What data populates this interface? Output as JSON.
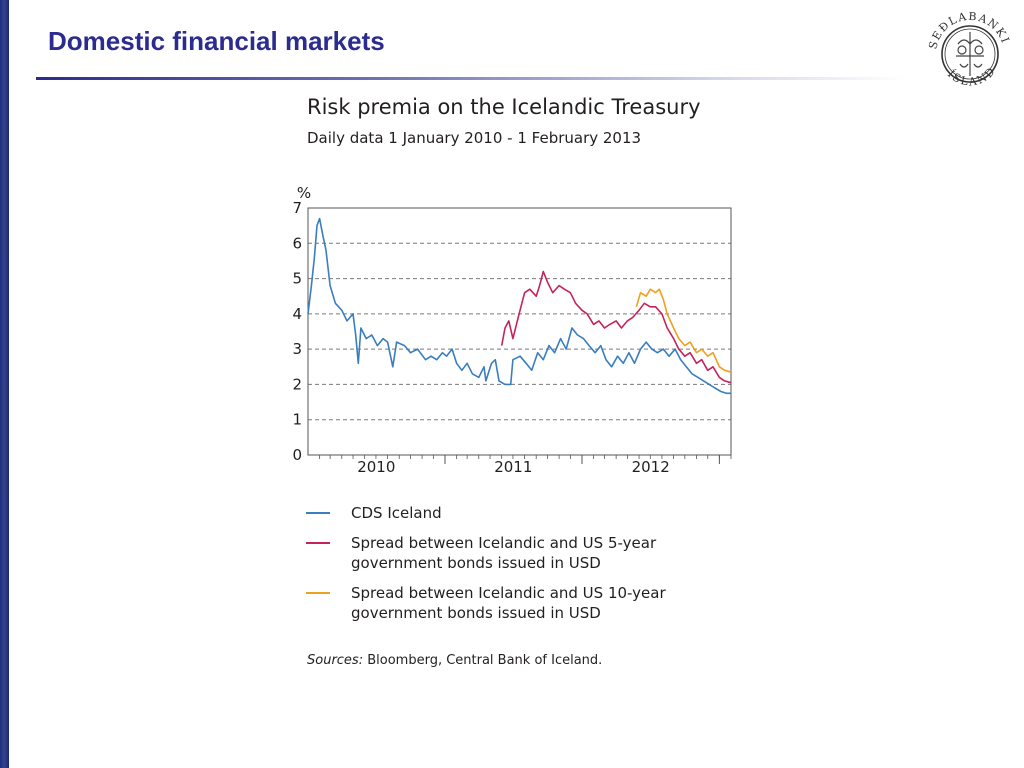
{
  "slide": {
    "title": "Domestic financial markets"
  },
  "logo": {
    "text_top": "SEÐLABANKI",
    "text_bottom": "ÍSLANDS",
    "icon": "central-bank-seal"
  },
  "colors": {
    "title": "#2b2b90",
    "cds": "#3a7ebf",
    "spread5": "#c4245c",
    "spread10": "#f0a020",
    "grid": "#7a7a7a"
  },
  "chart_data": {
    "type": "line",
    "title": "Risk premia on the Icelandic Treasury",
    "subtitle": "Daily data 1 January 2010 - 1 February 2013",
    "ylabel": "%",
    "ylim": [
      0,
      7
    ],
    "yticks": [
      "0",
      "1",
      "2",
      "3",
      "4",
      "5",
      "6",
      "7"
    ],
    "xlim": [
      "2010-01-01",
      "2013-02-01"
    ],
    "xtick_labels": [
      "2010",
      "2011",
      "2012"
    ],
    "grid": "horizontal dashed",
    "legend_position": "bottom",
    "series": [
      {
        "name": "CDS Iceland",
        "color": "#3a7ebf",
        "points": [
          [
            "2010-01-01",
            4.0
          ],
          [
            "2010-01-10",
            4.8
          ],
          [
            "2010-01-18",
            5.6
          ],
          [
            "2010-01-25",
            6.5
          ],
          [
            "2010-02-01",
            6.7
          ],
          [
            "2010-02-10",
            6.2
          ],
          [
            "2010-02-18",
            5.8
          ],
          [
            "2010-03-01",
            4.8
          ],
          [
            "2010-03-15",
            4.3
          ],
          [
            "2010-04-01",
            4.1
          ],
          [
            "2010-04-15",
            3.8
          ],
          [
            "2010-05-01",
            4.0
          ],
          [
            "2010-05-08",
            3.4
          ],
          [
            "2010-05-15",
            2.6
          ],
          [
            "2010-05-22",
            3.6
          ],
          [
            "2010-06-05",
            3.3
          ],
          [
            "2010-06-20",
            3.4
          ],
          [
            "2010-07-05",
            3.1
          ],
          [
            "2010-07-20",
            3.3
          ],
          [
            "2010-08-01",
            3.2
          ],
          [
            "2010-08-15",
            2.5
          ],
          [
            "2010-08-25",
            3.2
          ],
          [
            "2010-09-15",
            3.1
          ],
          [
            "2010-10-01",
            2.9
          ],
          [
            "2010-10-20",
            3.0
          ],
          [
            "2010-11-10",
            2.7
          ],
          [
            "2010-11-25",
            2.8
          ],
          [
            "2010-12-10",
            2.7
          ],
          [
            "2010-12-25",
            2.9
          ],
          [
            "2011-01-05",
            2.8
          ],
          [
            "2011-01-20",
            3.0
          ],
          [
            "2011-02-01",
            2.6
          ],
          [
            "2011-02-15",
            2.4
          ],
          [
            "2011-03-01",
            2.6
          ],
          [
            "2011-03-15",
            2.3
          ],
          [
            "2011-04-01",
            2.2
          ],
          [
            "2011-04-15",
            2.5
          ],
          [
            "2011-04-20",
            2.1
          ],
          [
            "2011-05-05",
            2.6
          ],
          [
            "2011-05-15",
            2.7
          ],
          [
            "2011-05-25",
            2.1
          ],
          [
            "2011-06-10",
            2.0
          ],
          [
            "2011-06-25",
            2.0
          ],
          [
            "2011-07-01",
            2.7
          ],
          [
            "2011-07-20",
            2.8
          ],
          [
            "2011-08-05",
            2.6
          ],
          [
            "2011-08-20",
            2.4
          ],
          [
            "2011-09-05",
            2.9
          ],
          [
            "2011-09-20",
            2.7
          ],
          [
            "2011-10-05",
            3.1
          ],
          [
            "2011-10-20",
            2.9
          ],
          [
            "2011-11-05",
            3.3
          ],
          [
            "2011-11-20",
            3.0
          ],
          [
            "2011-12-05",
            3.6
          ],
          [
            "2011-12-20",
            3.4
          ],
          [
            "2012-01-05",
            3.3
          ],
          [
            "2012-01-20",
            3.1
          ],
          [
            "2012-02-05",
            2.9
          ],
          [
            "2012-02-20",
            3.1
          ],
          [
            "2012-03-05",
            2.7
          ],
          [
            "2012-03-20",
            2.5
          ],
          [
            "2012-04-05",
            2.8
          ],
          [
            "2012-04-20",
            2.6
          ],
          [
            "2012-05-05",
            2.9
          ],
          [
            "2012-05-20",
            2.6
          ],
          [
            "2012-06-05",
            3.0
          ],
          [
            "2012-06-20",
            3.2
          ],
          [
            "2012-07-05",
            3.0
          ],
          [
            "2012-07-20",
            2.9
          ],
          [
            "2012-08-05",
            3.0
          ],
          [
            "2012-08-20",
            2.8
          ],
          [
            "2012-09-05",
            3.0
          ],
          [
            "2012-09-20",
            2.7
          ],
          [
            "2012-10-05",
            2.5
          ],
          [
            "2012-10-20",
            2.3
          ],
          [
            "2012-11-05",
            2.2
          ],
          [
            "2012-11-20",
            2.1
          ],
          [
            "2012-12-05",
            2.0
          ],
          [
            "2012-12-20",
            1.9
          ],
          [
            "2013-01-05",
            1.8
          ],
          [
            "2013-01-20",
            1.75
          ],
          [
            "2013-02-01",
            1.75
          ]
        ]
      },
      {
        "name": "Spread between Icelandic and US 5-year government bonds issued in USD",
        "color": "#c4245c",
        "points": [
          [
            "2011-06-01",
            3.1
          ],
          [
            "2011-06-10",
            3.6
          ],
          [
            "2011-06-20",
            3.8
          ],
          [
            "2011-07-01",
            3.3
          ],
          [
            "2011-07-15",
            3.9
          ],
          [
            "2011-08-01",
            4.6
          ],
          [
            "2011-08-15",
            4.7
          ],
          [
            "2011-09-01",
            4.5
          ],
          [
            "2011-09-10",
            4.8
          ],
          [
            "2011-09-20",
            5.2
          ],
          [
            "2011-10-01",
            4.9
          ],
          [
            "2011-10-15",
            4.6
          ],
          [
            "2011-11-01",
            4.8
          ],
          [
            "2011-11-15",
            4.7
          ],
          [
            "2011-12-01",
            4.6
          ],
          [
            "2011-12-15",
            4.3
          ],
          [
            "2012-01-01",
            4.1
          ],
          [
            "2012-01-15",
            4.0
          ],
          [
            "2012-02-01",
            3.7
          ],
          [
            "2012-02-15",
            3.8
          ],
          [
            "2012-03-01",
            3.6
          ],
          [
            "2012-03-15",
            3.7
          ],
          [
            "2012-04-01",
            3.8
          ],
          [
            "2012-04-15",
            3.6
          ],
          [
            "2012-05-01",
            3.8
          ],
          [
            "2012-05-15",
            3.9
          ],
          [
            "2012-06-01",
            4.1
          ],
          [
            "2012-06-15",
            4.3
          ],
          [
            "2012-07-01",
            4.2
          ],
          [
            "2012-07-15",
            4.2
          ],
          [
            "2012-08-01",
            4.0
          ],
          [
            "2012-08-15",
            3.6
          ],
          [
            "2012-09-01",
            3.3
          ],
          [
            "2012-09-15",
            3.0
          ],
          [
            "2012-10-01",
            2.8
          ],
          [
            "2012-10-15",
            2.9
          ],
          [
            "2012-11-01",
            2.6
          ],
          [
            "2012-11-15",
            2.7
          ],
          [
            "2012-12-01",
            2.4
          ],
          [
            "2012-12-15",
            2.5
          ],
          [
            "2013-01-01",
            2.2
          ],
          [
            "2013-01-15",
            2.1
          ],
          [
            "2013-02-01",
            2.05
          ]
        ]
      },
      {
        "name": "Spread between Icelandic and US 10-year government bonds issued in USD",
        "color": "#f0a020",
        "points": [
          [
            "2012-05-25",
            4.2
          ],
          [
            "2012-06-05",
            4.6
          ],
          [
            "2012-06-20",
            4.5
          ],
          [
            "2012-07-01",
            4.7
          ],
          [
            "2012-07-15",
            4.6
          ],
          [
            "2012-07-25",
            4.7
          ],
          [
            "2012-08-05",
            4.4
          ],
          [
            "2012-08-15",
            4.0
          ],
          [
            "2012-09-01",
            3.6
          ],
          [
            "2012-09-15",
            3.3
          ],
          [
            "2012-10-01",
            3.1
          ],
          [
            "2012-10-15",
            3.2
          ],
          [
            "2012-11-01",
            2.9
          ],
          [
            "2012-11-15",
            3.0
          ],
          [
            "2012-12-01",
            2.8
          ],
          [
            "2012-12-15",
            2.9
          ],
          [
            "2013-01-01",
            2.5
          ],
          [
            "2013-01-15",
            2.4
          ],
          [
            "2013-02-01",
            2.35
          ]
        ]
      }
    ]
  },
  "legend": [
    {
      "label": "CDS Iceland",
      "color": "#3a7ebf"
    },
    {
      "label": "Spread between Icelandic and US 5-year government bonds issued in USD",
      "color": "#c4245c"
    },
    {
      "label": "Spread between Icelandic and US 10-year government bonds issued in USD",
      "color": "#f0a020"
    }
  ],
  "sources": {
    "prefix": "Sources:",
    "text": " Bloomberg, Central Bank of Iceland."
  }
}
